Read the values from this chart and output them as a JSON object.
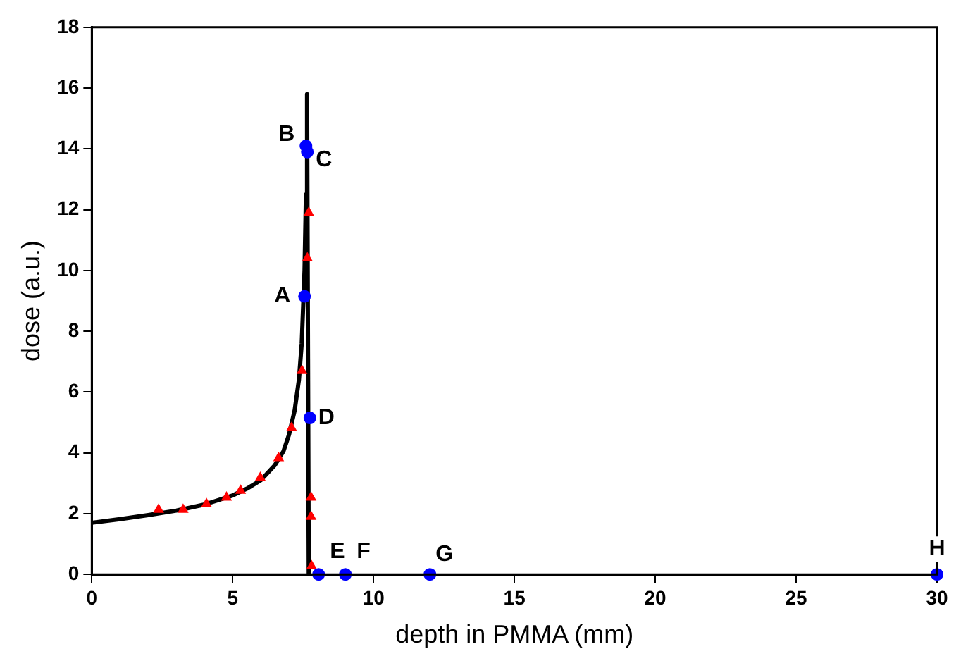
{
  "chart_data": {
    "type": "line",
    "xlabel": "depth in PMMA (mm)",
    "ylabel": "dose (a.u.)",
    "xlim": [
      0,
      30
    ],
    "xticks": [
      0,
      5,
      10,
      15,
      20,
      25,
      30
    ],
    "ylim": [
      0,
      18
    ],
    "yticks": [
      0,
      2,
      4,
      6,
      8,
      10,
      12,
      14,
      16,
      18
    ],
    "grid": false,
    "legend": false,
    "series": [
      {
        "color": "#000000",
        "marker": "none",
        "line_style": "solid",
        "x": [
          0,
          1,
          2,
          3,
          4,
          5,
          5.5,
          6,
          6.5,
          6.8,
          7,
          7.2,
          7.35,
          7.45,
          7.55,
          7.6,
          7.64,
          7.7
        ],
        "values": [
          1.7,
          1.82,
          1.95,
          2.1,
          2.3,
          2.6,
          2.82,
          3.1,
          3.6,
          4.05,
          4.6,
          5.4,
          6.4,
          7.6,
          10,
          12.5,
          15.8,
          0
        ]
      },
      {
        "type": "scatter",
        "color": "#ff0000",
        "marker": "triangle",
        "x": [
          2.37,
          3.24,
          4.07,
          4.78,
          5.28,
          5.98,
          6.63,
          7.09,
          7.46,
          7.65,
          7.7,
          7.78,
          7.78,
          7.8
        ],
        "values": [
          2.13,
          2.13,
          2.32,
          2.53,
          2.76,
          3.18,
          3.83,
          4.82,
          6.7,
          10.4,
          11.9,
          2.53,
          1.9,
          0.27
        ]
      },
      {
        "type": "scatter",
        "color": "#0000ff",
        "marker": "circle",
        "x": [
          7.55,
          7.6,
          7.65,
          7.74,
          8.05,
          9,
          12,
          30
        ],
        "values": [
          9.15,
          14.1,
          13.9,
          5.15,
          0,
          0,
          0,
          0
        ]
      }
    ],
    "annotations": [
      {
        "text": "A",
        "x": 7.55,
        "y": 9.15
      },
      {
        "text": "B",
        "x": 7.6,
        "y": 14.1
      },
      {
        "text": "C",
        "x": 7.65,
        "y": 13.9
      },
      {
        "text": "D",
        "x": 7.74,
        "y": 5.15
      },
      {
        "text": "E",
        "x": 8.05,
        "y": 0
      },
      {
        "text": "F",
        "x": 9,
        "y": 0
      },
      {
        "text": "G",
        "x": 12,
        "y": 0
      },
      {
        "text": "H",
        "x": 30,
        "y": 0
      }
    ]
  }
}
